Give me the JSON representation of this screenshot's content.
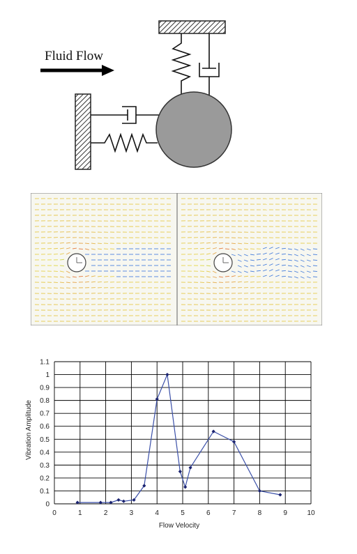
{
  "diagram": {
    "flow_label": "Fluid Flow"
  },
  "colors": {
    "cylinder": "#9a9a9a",
    "wall_hatch": "#333333",
    "flow_bg": "#f7f7f0",
    "field_low": "#1e9c4a",
    "field_mid": "#e4d83a",
    "field_high": "#e02a1c",
    "wake": "#2b6cd8",
    "series_line": "#3a4fa8",
    "series_marker": "#1b2370"
  },
  "chart_data": {
    "type": "line",
    "xlabel": "Flow Velocity",
    "ylabel": "Vibration Amplitude",
    "xlim": [
      0,
      10
    ],
    "ylim": [
      0,
      1.1
    ],
    "x_ticks": [
      "0",
      "1",
      "2",
      "3",
      "4",
      "5",
      "6",
      "7",
      "8",
      "9",
      "10"
    ],
    "y_ticks": [
      "0",
      "0.1",
      "0.2",
      "0.3",
      "0.4",
      "0.5",
      "0.6",
      "0.7",
      "0.8",
      "0.9",
      "1",
      "1.1"
    ],
    "grid": true,
    "series": [
      {
        "x": [
          0.9,
          1.8,
          2.2,
          2.5,
          2.7,
          3.1,
          3.5,
          4.0,
          4.4,
          4.9,
          5.1,
          5.3,
          6.2,
          7.0,
          8.0,
          8.8
        ],
        "y": [
          0.01,
          0.01,
          0.01,
          0.03,
          0.02,
          0.03,
          0.14,
          0.81,
          1.0,
          0.25,
          0.13,
          0.28,
          0.56,
          0.48,
          0.1,
          0.07
        ]
      }
    ]
  }
}
